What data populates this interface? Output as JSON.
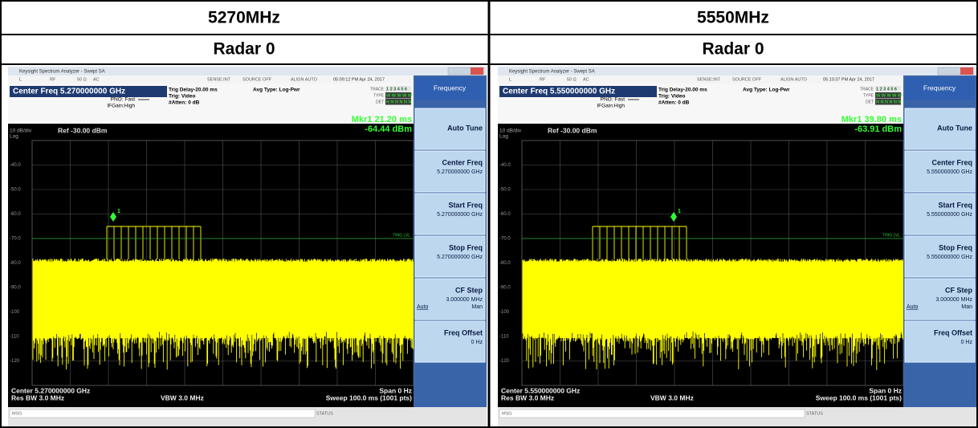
{
  "table": {
    "header": [
      "5270MHz",
      "5550MHz"
    ],
    "subheader": [
      "Radar 0",
      "Radar 0"
    ],
    "screens": [
      {
        "window_title": "Keysight Spectrum Analyzer - Swept SA",
        "toolbar": [
          "L",
          "RF",
          "50 Ω",
          "AC",
          "SENSE:INT",
          "SOURCE OFF",
          "ALIGN AUTO"
        ],
        "timestamp": "05:09:12 PM Apr 24, 2017",
        "center_freq": "Center Freq 5.270000000 GHz",
        "settings": [
          "PNO: Fast",
          "IFGain:High",
          "Trig Delay-20.00 ms",
          "Trig: Video",
          "#Atten: 0 dB",
          "Avg Type: Log-Pwr"
        ],
        "trace_labels": [
          "TRACE",
          "TYPE",
          "DET"
        ],
        "trace_values": [
          "1 2 3 4 5 6",
          "W W W W W W",
          "N N N N N N"
        ],
        "marker": [
          "Mkr1 21.20 ms",
          "-64.44 dBm"
        ],
        "scale": [
          "10 dB/div",
          "Log"
        ],
        "ref": "Ref -30.00 dBm",
        "y_labels": [
          "-40.0",
          "-50.0",
          "-60.0",
          "-70.0",
          "-80.0",
          "-90.0",
          "-100",
          "-110",
          "-120"
        ],
        "marker_label": "1",
        "trig_label": "TRIG LVL",
        "footer": [
          "Center 5.270000000 GHz",
          "Span 0 Hz",
          "Res BW 3.0 MHz",
          "VBW 3.0 MHz",
          "Sweep  100.0 ms (1001 pts)"
        ],
        "status": [
          "MSG",
          "STATUS"
        ],
        "softkeys": {
          "menu": "Frequency",
          "keys": [
            {
              "label": "Auto Tune"
            },
            {
              "label": "Center Freq",
              "value": "5.270000000 GHz"
            },
            {
              "label": "Start Freq",
              "value": "5.270000000 GHz"
            },
            {
              "label": "Stop Freq",
              "value": "5.270000000 GHz"
            },
            {
              "label": "CF Step",
              "value": "3.000000 MHz",
              "options": [
                "Auto",
                "Man"
              ]
            },
            {
              "label": "Freq Offset",
              "value": "0 Hz"
            }
          ]
        }
      },
      {
        "window_title": "Keysight Spectrum Analyzer - Swept SA",
        "toolbar": [
          "L",
          "RF",
          "50 Ω",
          "AC",
          "SENSE:INT",
          "SOURCE OFF",
          "ALIGN AUTO"
        ],
        "timestamp": "05:10:37 PM Apr 24, 2017",
        "center_freq": "Center Freq 5.550000000 GHz",
        "settings": [
          "PNO: Fast",
          "IFGain:High",
          "Trig Delay-20.00 ms",
          "Trig: Video",
          "#Atten: 0 dB",
          "Avg Type: Log-Pwr"
        ],
        "trace_labels": [
          "TRACE",
          "TYPE",
          "DET"
        ],
        "trace_values": [
          "1 2 3 4 5 6",
          "W W W W W W",
          "N N N N N N"
        ],
        "marker": [
          "Mkr1 39.80 ms",
          "-63.91 dBm"
        ],
        "scale": [
          "10 dB/div",
          "Log"
        ],
        "ref": "Ref -30.00 dBm",
        "y_labels": [
          "-40.0",
          "-50.0",
          "-60.0",
          "-70.0",
          "-80.0",
          "-90.0",
          "-100",
          "-110",
          "-120"
        ],
        "marker_label": "1",
        "trig_label": "TRIG LVL",
        "footer": [
          "Center 5.550000000 GHz",
          "Span 0 Hz",
          "Res BW 3.0 MHz",
          "VBW 3.0 MHz",
          "Sweep  100.0 ms (1001 pts)"
        ],
        "status": [
          "MSG",
          "STATUS"
        ],
        "softkeys": {
          "menu": "Frequency",
          "keys": [
            {
              "label": "Auto Tune"
            },
            {
              "label": "Center Freq",
              "value": "5.550000000 GHz"
            },
            {
              "label": "Start Freq",
              "value": "5.550000000 GHz"
            },
            {
              "label": "Stop Freq",
              "value": "5.550000000 GHz"
            },
            {
              "label": "CF Step",
              "value": "3.000000 MHz",
              "options": [
                "Auto",
                "Man"
              ]
            },
            {
              "label": "Freq Offset",
              "value": "0 Hz"
            }
          ]
        }
      }
    ]
  }
}
